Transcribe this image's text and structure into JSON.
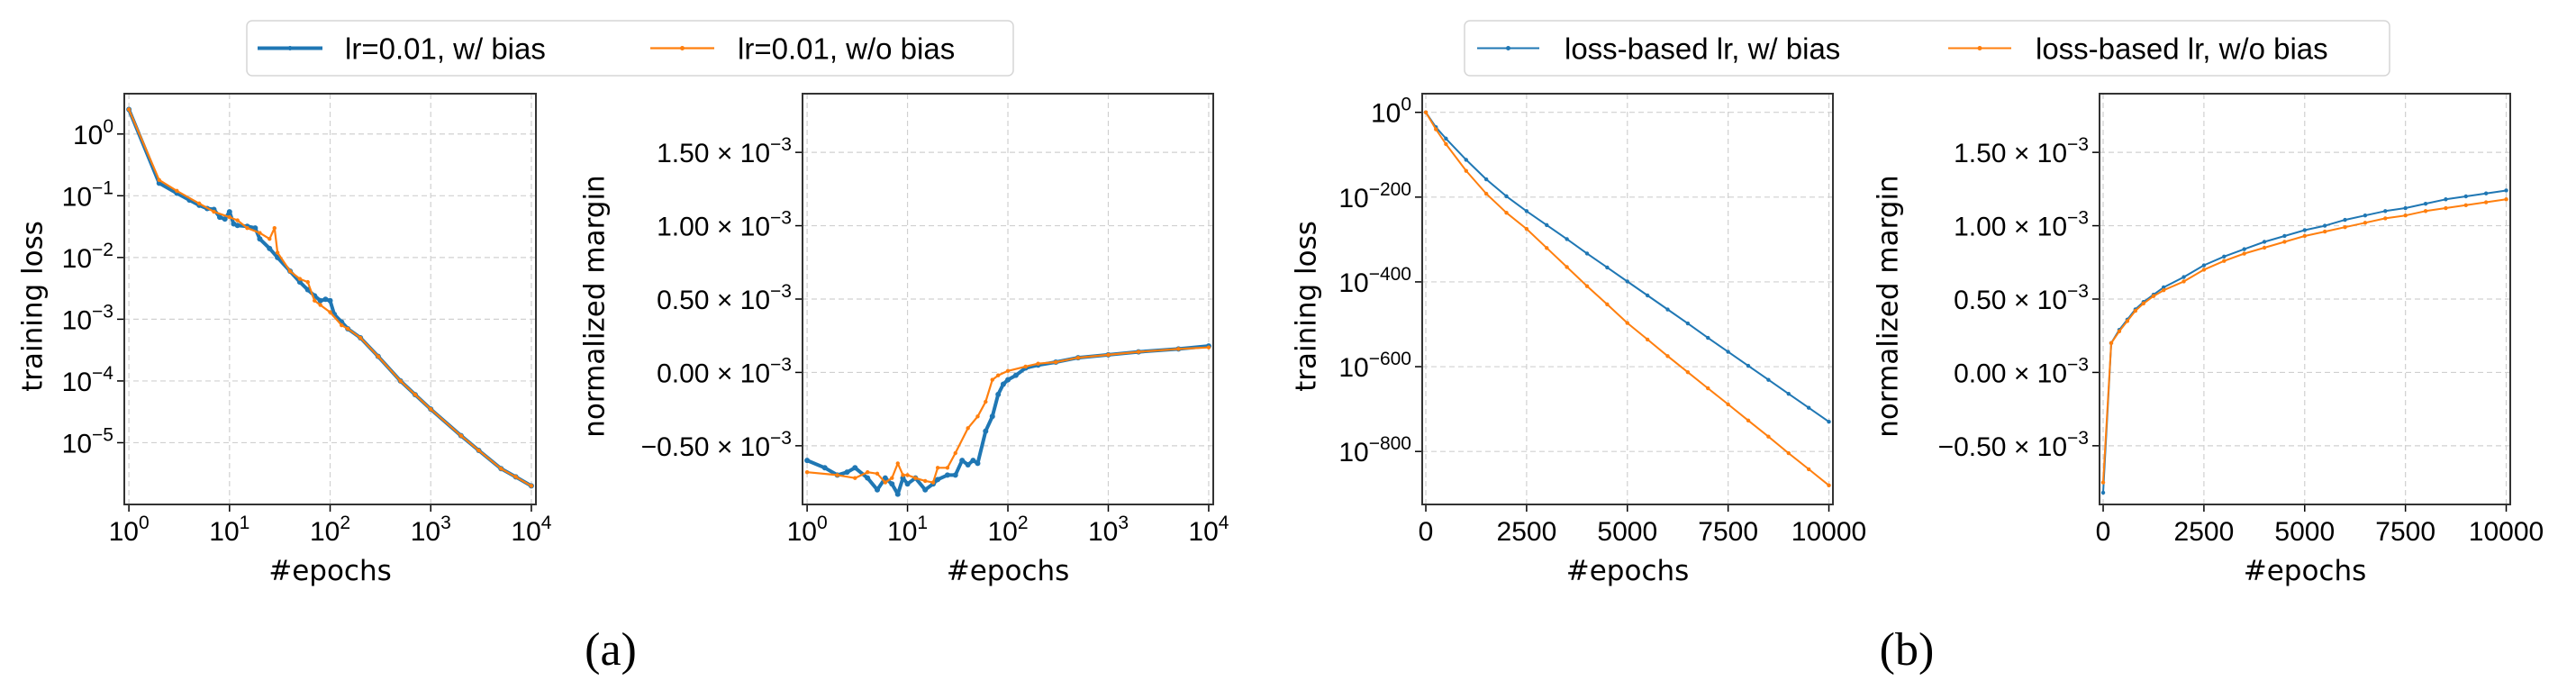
{
  "captions": [
    "(a)",
    "(b)"
  ],
  "legends": [
    {
      "items": [
        {
          "label": "lr=0.01, w/ bias",
          "color": "#1f77b4"
        },
        {
          "label": "lr=0.01, w/o bias",
          "color": "#ff7f0e"
        }
      ]
    },
    {
      "items": [
        {
          "label": "loss-based lr, w/ bias",
          "color": "#1f77b4"
        },
        {
          "label": "loss-based lr, w/o bias",
          "color": "#ff7f0e"
        }
      ]
    }
  ],
  "chart_data": [
    {
      "type": "line",
      "xscale": "log",
      "yscale": "log",
      "grid": true,
      "xlabel": "#epochs",
      "ylabel": "training loss",
      "xlim": [
        0.9,
        11100
      ],
      "ylim": [
        1e-06,
        4.5
      ],
      "xticks": [
        {
          "v": 1,
          "label": "10^0"
        },
        {
          "v": 10,
          "label": "10^1"
        },
        {
          "v": 100,
          "label": "10^2"
        },
        {
          "v": 1000,
          "label": "10^3"
        },
        {
          "v": 10000,
          "label": "10^4"
        }
      ],
      "yticks": [
        {
          "v": 1,
          "label": "10^0"
        },
        {
          "v": 0.1,
          "label": "10^−1"
        },
        {
          "v": 0.01,
          "label": "10^−2"
        },
        {
          "v": 0.001,
          "label": "10^−3"
        },
        {
          "v": 0.0001,
          "label": "10^−4"
        },
        {
          "v": 1e-05,
          "label": "10^−5"
        }
      ],
      "series": [
        {
          "name": "lr=0.01, w/ bias",
          "color": "#1f77b4",
          "x": [
            1,
            2,
            3,
            4,
            5,
            6,
            7,
            8,
            9,
            10,
            11,
            12,
            15,
            18,
            20,
            25,
            30,
            40,
            50,
            60,
            70,
            80,
            90,
            100,
            110,
            130,
            150,
            200,
            300,
            500,
            700,
            1000,
            2000,
            3000,
            5000,
            7000,
            10000
          ],
          "y": [
            2.5,
            0.16,
            0.11,
            0.085,
            0.07,
            0.062,
            0.06,
            0.045,
            0.042,
            0.055,
            0.035,
            0.033,
            0.032,
            0.03,
            0.02,
            0.014,
            0.01,
            0.006,
            0.004,
            0.003,
            0.0024,
            0.002,
            0.0021,
            0.002,
            0.0012,
            0.0009,
            0.0007,
            0.0005,
            0.00025,
            0.0001,
            6e-05,
            3.5e-05,
            1.3e-05,
            7.5e-06,
            3.8e-06,
            2.8e-06,
            2e-06
          ]
        },
        {
          "name": "lr=0.01, w/o bias",
          "color": "#ff7f0e",
          "x": [
            1,
            2,
            3,
            5,
            7,
            10,
            12,
            15,
            20,
            25,
            28,
            30,
            40,
            50,
            60,
            70,
            80,
            100,
            130,
            150,
            200,
            300,
            500,
            700,
            1000,
            2000,
            3000,
            5000,
            7000,
            10000
          ],
          "y": [
            2.5,
            0.18,
            0.12,
            0.075,
            0.055,
            0.045,
            0.04,
            0.03,
            0.025,
            0.02,
            0.03,
            0.012,
            0.006,
            0.0045,
            0.004,
            0.002,
            0.0017,
            0.0013,
            0.0008,
            0.0007,
            0.0005,
            0.00025,
            0.0001,
            6e-05,
            3.5e-05,
            1.3e-05,
            7.5e-06,
            3.8e-06,
            2.8e-06,
            2e-06
          ]
        }
      ]
    },
    {
      "type": "line",
      "xscale": "log",
      "yscale": "linear",
      "grid": true,
      "xlabel": "#epochs",
      "ylabel": "normalized margin",
      "xlim": [
        0.9,
        11100
      ],
      "ylim": [
        -0.9,
        1.9
      ],
      "xticks": [
        {
          "v": 1,
          "label": "10^0"
        },
        {
          "v": 10,
          "label": "10^1"
        },
        {
          "v": 100,
          "label": "10^2"
        },
        {
          "v": 1000,
          "label": "10^3"
        },
        {
          "v": 10000,
          "label": "10^4"
        }
      ],
      "yticks": [
        {
          "v": -0.5,
          "label": "−0.50 × 10^−3"
        },
        {
          "v": 0,
          "label": "0.00 × 10^−3"
        },
        {
          "v": 0.5,
          "label": "0.50 × 10^−3"
        },
        {
          "v": 1.0,
          "label": "1.00 × 10^−3"
        },
        {
          "v": 1.5,
          "label": "1.50 × 10^−3"
        }
      ],
      "series": [
        {
          "name": "lr=0.01, w/ bias",
          "color": "#1f77b4",
          "x": [
            1,
            1.5,
            2,
            2.5,
            3,
            4,
            5,
            6,
            7,
            8,
            9,
            10,
            12,
            15,
            18,
            20,
            25,
            30,
            35,
            40,
            45,
            50,
            60,
            70,
            80,
            90,
            100,
            120,
            150,
            200,
            300,
            500,
            1000,
            2000,
            5000,
            10000
          ],
          "y": [
            -0.6,
            -0.65,
            -0.7,
            -0.68,
            -0.65,
            -0.72,
            -0.8,
            -0.72,
            -0.76,
            -0.83,
            -0.72,
            -0.76,
            -0.72,
            -0.8,
            -0.76,
            -0.73,
            -0.7,
            -0.7,
            -0.6,
            -0.63,
            -0.6,
            -0.62,
            -0.4,
            -0.3,
            -0.15,
            -0.08,
            -0.05,
            -0.02,
            0.03,
            0.05,
            0.07,
            0.1,
            0.12,
            0.14,
            0.16,
            0.18
          ]
        },
        {
          "name": "lr=0.01, w/o bias",
          "color": "#ff7f0e",
          "x": [
            1,
            2,
            3,
            4,
            5,
            6,
            7,
            8,
            9,
            10,
            12,
            15,
            18,
            20,
            25,
            30,
            40,
            50,
            60,
            70,
            80,
            100,
            150,
            200,
            300,
            500,
            1000,
            2000,
            5000,
            10000
          ],
          "y": [
            -0.68,
            -0.7,
            -0.72,
            -0.68,
            -0.69,
            -0.75,
            -0.72,
            -0.62,
            -0.7,
            -0.7,
            -0.72,
            -0.74,
            -0.75,
            -0.65,
            -0.65,
            -0.55,
            -0.38,
            -0.3,
            -0.2,
            -0.05,
            -0.02,
            0.01,
            0.04,
            0.06,
            0.07,
            0.1,
            0.12,
            0.14,
            0.16,
            0.17
          ]
        }
      ]
    },
    {
      "type": "line",
      "xscale": "linear",
      "yscale": "log",
      "grid": true,
      "xlabel": "#epochs",
      "ylabel": "training loss",
      "xlim": [
        -90,
        10100
      ],
      "ylim_log10": [
        -925,
        44
      ],
      "xticks": [
        {
          "v": 0,
          "label": "0"
        },
        {
          "v": 2500,
          "label": "2500"
        },
        {
          "v": 5000,
          "label": "5000"
        },
        {
          "v": 7500,
          "label": "7500"
        },
        {
          "v": 10000,
          "label": "10000"
        }
      ],
      "yticks": [
        {
          "v": 0,
          "label": "10^0"
        },
        {
          "v": -200,
          "label": "10^−200"
        },
        {
          "v": -400,
          "label": "10^−400"
        },
        {
          "v": -600,
          "label": "10^−600"
        },
        {
          "v": -800,
          "label": "10^−800"
        }
      ],
      "series": [
        {
          "name": "loss-based lr, w/ bias",
          "color": "#1f77b4",
          "x": [
            0,
            250,
            500,
            1000,
            1500,
            2000,
            2500,
            3000,
            3500,
            4000,
            4500,
            5000,
            5500,
            6000,
            6500,
            7000,
            7500,
            8000,
            8500,
            9000,
            9500,
            10000
          ],
          "y_log10": [
            0,
            -35,
            -62,
            -112,
            -158,
            -198,
            -233,
            -266,
            -299,
            -333,
            -366,
            -399,
            -432,
            -465,
            -498,
            -532,
            -565,
            -598,
            -631,
            -664,
            -697,
            -730
          ]
        },
        {
          "name": "loss-based lr, w/o bias",
          "color": "#ff7f0e",
          "x": [
            0,
            250,
            500,
            1000,
            1500,
            2000,
            2500,
            3000,
            3500,
            4000,
            4500,
            5000,
            5500,
            6000,
            6500,
            7000,
            7500,
            8000,
            8500,
            9000,
            9500,
            10000
          ],
          "y_log10": [
            0,
            -40,
            -75,
            -138,
            -192,
            -237,
            -275,
            -320,
            -365,
            -410,
            -453,
            -497,
            -536,
            -575,
            -613,
            -651,
            -689,
            -727,
            -765,
            -804,
            -842,
            -880
          ]
        }
      ]
    },
    {
      "type": "line",
      "xscale": "linear",
      "yscale": "linear",
      "grid": true,
      "xlabel": "#epochs",
      "ylabel": "normalized margin",
      "xlim": [
        -90,
        10100
      ],
      "ylim": [
        -0.9,
        1.9
      ],
      "xticks": [
        {
          "v": 0,
          "label": "0"
        },
        {
          "v": 2500,
          "label": "2500"
        },
        {
          "v": 5000,
          "label": "5000"
        },
        {
          "v": 7500,
          "label": "7500"
        },
        {
          "v": 10000,
          "label": "10000"
        }
      ],
      "yticks": [
        {
          "v": -0.5,
          "label": "−0.50 × 10^−3"
        },
        {
          "v": 0,
          "label": "0.00 × 10^−3"
        },
        {
          "v": 0.5,
          "label": "0.50 × 10^−3"
        },
        {
          "v": 1.0,
          "label": "1.00 × 10^−3"
        },
        {
          "v": 1.5,
          "label": "1.50 × 10^−3"
        }
      ],
      "series": [
        {
          "name": "loss-based lr, w/ bias",
          "color": "#1f77b4",
          "x": [
            0,
            200,
            400,
            600,
            800,
            1000,
            1250,
            1500,
            2000,
            2500,
            3000,
            3500,
            4000,
            4500,
            5000,
            5500,
            6000,
            6500,
            7000,
            7500,
            8000,
            8500,
            9000,
            9500,
            10000
          ],
          "y": [
            -0.82,
            0.2,
            0.29,
            0.36,
            0.43,
            0.48,
            0.53,
            0.58,
            0.65,
            0.73,
            0.79,
            0.84,
            0.89,
            0.93,
            0.97,
            1.0,
            1.04,
            1.07,
            1.1,
            1.12,
            1.15,
            1.18,
            1.2,
            1.22,
            1.24
          ]
        },
        {
          "name": "loss-based lr, w/o bias",
          "color": "#ff7f0e",
          "x": [
            0,
            200,
            400,
            600,
            800,
            1000,
            1250,
            1500,
            2000,
            2500,
            3000,
            3500,
            4000,
            4500,
            5000,
            5500,
            6000,
            6500,
            7000,
            7500,
            8000,
            8500,
            9000,
            9500,
            10000
          ],
          "y": [
            -0.75,
            0.2,
            0.28,
            0.35,
            0.42,
            0.47,
            0.52,
            0.56,
            0.62,
            0.7,
            0.76,
            0.81,
            0.85,
            0.89,
            0.93,
            0.96,
            0.99,
            1.02,
            1.05,
            1.07,
            1.1,
            1.12,
            1.14,
            1.16,
            1.18
          ]
        }
      ]
    }
  ]
}
